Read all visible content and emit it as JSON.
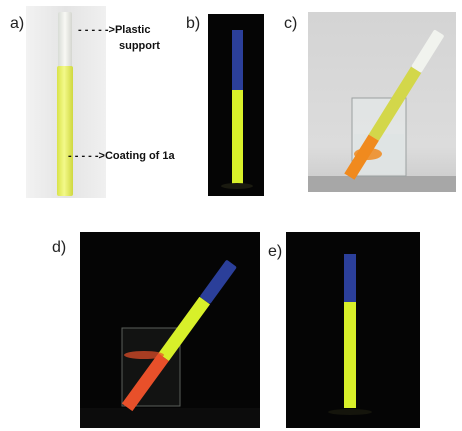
{
  "figure": {
    "panels": [
      {
        "id": "a",
        "label": "a)"
      },
      {
        "id": "b",
        "label": "b)"
      },
      {
        "id": "c",
        "label": "c)"
      },
      {
        "id": "d",
        "label": "d)"
      },
      {
        "id": "e",
        "label": "e)"
      }
    ],
    "annotations": {
      "plastic_support_line1": "Plastic",
      "plastic_support_line2": "support",
      "coating": "Coating of 1a"
    },
    "colors": {
      "coating_yellow": "#ecf56a",
      "coating_glow": "#d8f02a",
      "blue_end": "#2b3f9a",
      "orange_immersed": "#f08a1e",
      "red_immersed": "#e8502a",
      "dark_background": "#050505",
      "light_background": "#dadada"
    }
  }
}
